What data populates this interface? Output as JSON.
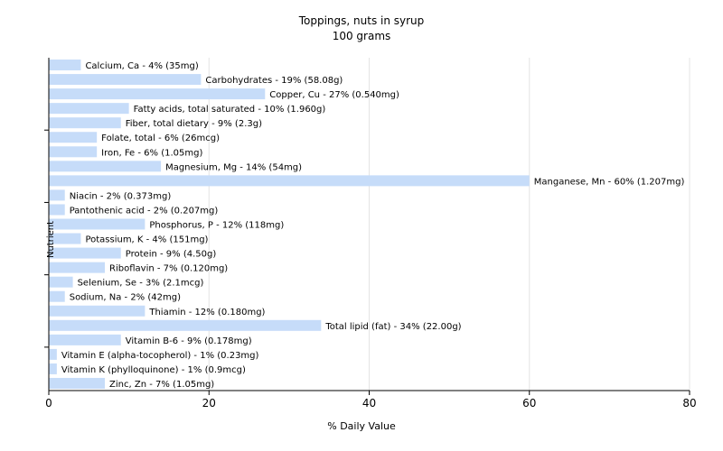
{
  "chart_data": {
    "type": "bar",
    "orientation": "horizontal",
    "title": "Toppings, nuts in syrup",
    "subtitle": "100 grams",
    "xlabel": "% Daily Value",
    "ylabel": "Nutrient",
    "xlim": [
      0,
      80
    ],
    "xticks": [
      0,
      20,
      40,
      60,
      80
    ],
    "grid": true,
    "bar_color": "#c6dcf9",
    "categories": [
      "Calcium, Ca",
      "Carbohydrates",
      "Copper, Cu",
      "Fatty acids, total saturated",
      "Fiber, total dietary",
      "Folate, total",
      "Iron, Fe",
      "Magnesium, Mg",
      "Manganese, Mn",
      "Niacin",
      "Pantothenic acid",
      "Phosphorus, P",
      "Potassium, K",
      "Protein",
      "Riboflavin",
      "Selenium, Se",
      "Sodium, Na",
      "Thiamin",
      "Total lipid (fat)",
      "Vitamin B-6",
      "Vitamin E (alpha-tocopherol)",
      "Vitamin K (phylloquinone)",
      "Zinc, Zn"
    ],
    "values": [
      4,
      19,
      27,
      10,
      9,
      6,
      6,
      14,
      60,
      2,
      2,
      12,
      4,
      9,
      7,
      3,
      2,
      12,
      34,
      9,
      1,
      1,
      7
    ],
    "labels": [
      "Calcium, Ca - 4% (35mg)",
      "Carbohydrates - 19% (58.08g)",
      "Copper, Cu - 27% (0.540mg)",
      "Fatty acids, total saturated - 10% (1.960g)",
      "Fiber, total dietary - 9% (2.3g)",
      "Folate, total - 6% (26mcg)",
      "Iron, Fe - 6% (1.05mg)",
      "Magnesium, Mg - 14% (54mg)",
      "Manganese, Mn - 60% (1.207mg)",
      "Niacin - 2% (0.373mg)",
      "Pantothenic acid - 2% (0.207mg)",
      "Phosphorus, P - 12% (118mg)",
      "Potassium, K - 4% (151mg)",
      "Protein - 9% (4.50g)",
      "Riboflavin - 7% (0.120mg)",
      "Selenium, Se - 3% (2.1mcg)",
      "Sodium, Na - 2% (42mg)",
      "Thiamin - 12% (0.180mg)",
      "Total lipid (fat) - 34% (22.00g)",
      "Vitamin B-6 - 9% (0.178mg)",
      "Vitamin E (alpha-tocopherol) - 1% (0.23mg)",
      "Vitamin K (phylloquinone) - 1% (0.9mcg)",
      "Zinc, Zn - 7% (1.05mg)"
    ]
  }
}
